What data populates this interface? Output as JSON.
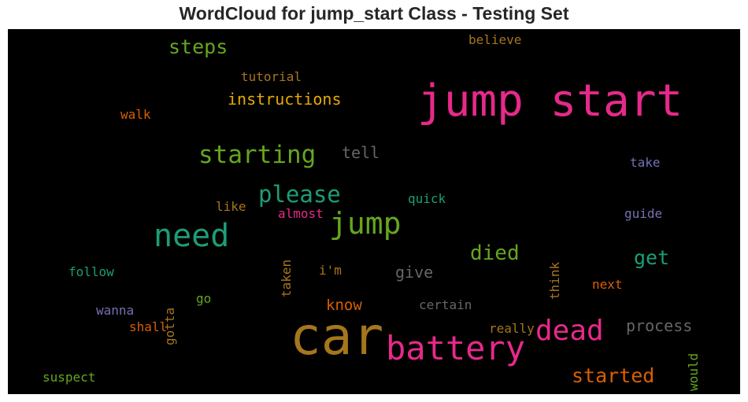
{
  "chart_data": {
    "type": "wordcloud",
    "title": "WordCloud for jump_start Class - Testing Set",
    "background": "#000000",
    "words": [
      {
        "text": "jump start",
        "color": "#e7298a",
        "vertical": false
      },
      {
        "text": "car",
        "color": "#a6761d",
        "vertical": false
      },
      {
        "text": "battery",
        "color": "#e7298a",
        "vertical": false
      },
      {
        "text": "need",
        "color": "#1b9e77",
        "vertical": false
      },
      {
        "text": "jump",
        "color": "#66a61e",
        "vertical": false
      },
      {
        "text": "dead",
        "color": "#e7298a",
        "vertical": false
      },
      {
        "text": "starting",
        "color": "#66a61e",
        "vertical": false
      },
      {
        "text": "please",
        "color": "#1b9e77",
        "vertical": false
      },
      {
        "text": "started",
        "color": "#d95f02",
        "vertical": false
      },
      {
        "text": "steps",
        "color": "#66a61e",
        "vertical": false
      },
      {
        "text": "died",
        "color": "#66a61e",
        "vertical": false
      },
      {
        "text": "get",
        "color": "#1b9e77",
        "vertical": false
      },
      {
        "text": "instructions",
        "color": "#e6ab02",
        "vertical": false
      },
      {
        "text": "process",
        "color": "#666666",
        "vertical": false
      },
      {
        "text": "tell",
        "color": "#666666",
        "vertical": false
      },
      {
        "text": "give",
        "color": "#666666",
        "vertical": false
      },
      {
        "text": "know",
        "color": "#d95f02",
        "vertical": false
      },
      {
        "text": "tutorial",
        "color": "#a6761d",
        "vertical": false
      },
      {
        "text": "believe",
        "color": "#a6761d",
        "vertical": false
      },
      {
        "text": "walk",
        "color": "#d95f02",
        "vertical": false
      },
      {
        "text": "take",
        "color": "#7570b3",
        "vertical": false
      },
      {
        "text": "quick",
        "color": "#1b9e77",
        "vertical": false
      },
      {
        "text": "like",
        "color": "#a6761d",
        "vertical": false
      },
      {
        "text": "almost",
        "color": "#e7298a",
        "vertical": false
      },
      {
        "text": "guide",
        "color": "#7570b3",
        "vertical": false
      },
      {
        "text": "follow",
        "color": "#1b9e77",
        "vertical": false
      },
      {
        "text": "i'm",
        "color": "#a6761d",
        "vertical": false
      },
      {
        "text": "next",
        "color": "#d95f02",
        "vertical": false
      },
      {
        "text": "wanna",
        "color": "#7570b3",
        "vertical": false
      },
      {
        "text": "go",
        "color": "#66a61e",
        "vertical": false
      },
      {
        "text": "certain",
        "color": "#666666",
        "vertical": false
      },
      {
        "text": "shall",
        "color": "#d95f02",
        "vertical": false
      },
      {
        "text": "really",
        "color": "#a6761d",
        "vertical": false
      },
      {
        "text": "suspect",
        "color": "#66a61e",
        "vertical": false
      },
      {
        "text": "taken",
        "color": "#a6761d",
        "vertical": true
      },
      {
        "text": "think",
        "color": "#a6761d",
        "vertical": true
      },
      {
        "text": "gotta",
        "color": "#a6761d",
        "vertical": true
      },
      {
        "text": "would",
        "color": "#66a61e",
        "vertical": true
      }
    ]
  }
}
